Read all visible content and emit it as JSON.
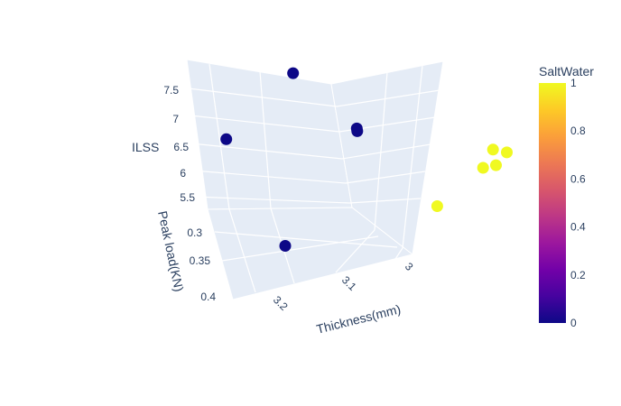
{
  "chart_data": {
    "type": "scatter3d",
    "axes": {
      "x": {
        "title": "Thickness(mm)",
        "ticks": [
          "3",
          "3.1",
          "3.2"
        ]
      },
      "y": {
        "title": "Peak load(KN)",
        "ticks": [
          "0.3",
          "0.35",
          "0.4"
        ]
      },
      "z": {
        "title": "ILSS",
        "ticks": [
          "5.5",
          "6",
          "6.5",
          "7",
          "7.5"
        ]
      }
    },
    "colorbar": {
      "title": "SaltWater",
      "ticks": [
        "0",
        "0.2",
        "0.4",
        "0.6",
        "0.8",
        "1"
      ],
      "range": [
        0,
        1
      ],
      "colorscale": [
        "#0d0887",
        "#46039f",
        "#7201a8",
        "#9c179e",
        "#bd3786",
        "#d8576b",
        "#ed7953",
        "#fb9f3a",
        "#fdca26",
        "#f0f921"
      ]
    },
    "points": [
      {
        "thickness": 3.22,
        "peak_load": 0.27,
        "ilss": 7.8,
        "saltwater": 0
      },
      {
        "thickness": 3.28,
        "peak_load": 0.33,
        "ilss": 7.1,
        "saltwater": 0
      },
      {
        "thickness": 3.18,
        "peak_load": 0.3,
        "ilss": 7.05,
        "saltwater": 0
      },
      {
        "thickness": 3.18,
        "peak_load": 0.3,
        "ilss": 7.0,
        "saltwater": 0
      },
      {
        "thickness": 3.25,
        "peak_load": 0.36,
        "ilss": 5.4,
        "saltwater": 0
      },
      {
        "thickness": 3.08,
        "peak_load": 0.28,
        "ilss": 6.5,
        "saltwater": 1
      },
      {
        "thickness": 3.07,
        "peak_load": 0.28,
        "ilss": 6.45,
        "saltwater": 1
      },
      {
        "thickness": 3.08,
        "peak_load": 0.29,
        "ilss": 6.3,
        "saltwater": 1
      },
      {
        "thickness": 3.09,
        "peak_load": 0.29,
        "ilss": 6.25,
        "saltwater": 1
      },
      {
        "thickness": 3.13,
        "peak_load": 0.32,
        "ilss": 5.8,
        "saltwater": 1
      }
    ]
  }
}
